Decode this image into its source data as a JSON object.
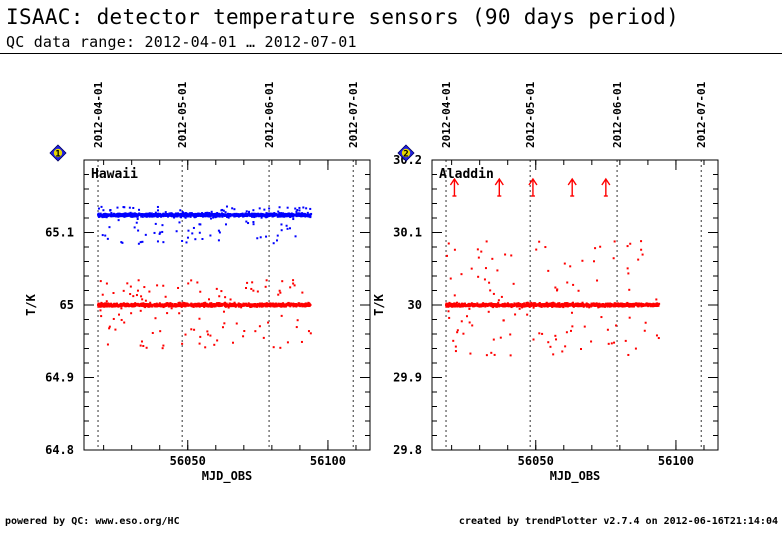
{
  "title": "ISAAC: detector temperature sensors (90 days period)",
  "subtitle": "QC data range: 2012-04-01 … 2012-07-01",
  "footer_left": "powered by QC: www.eso.org/HC",
  "footer_right": "created by trendPlotter v2.7.4 on 2012-06-16T21:14:04",
  "chart_data": [
    {
      "type": "scatter",
      "index_badge": "1",
      "panel_label": "Hawaii",
      "xlabel": "MJD_OBS",
      "ylabel": "T/K",
      "xlim": [
        56013,
        56115
      ],
      "ylim": [
        64.8,
        65.2
      ],
      "x_ticks": [
        56050,
        56100
      ],
      "y_ticks": [
        64.8,
        64.9,
        65,
        65.1
      ],
      "date_marks": [
        {
          "label": "2012-04-01",
          "mjd": 56018
        },
        {
          "label": "2012-05-01",
          "mjd": 56048
        },
        {
          "label": "2012-06-01",
          "mjd": 56079
        },
        {
          "label": "2012-07-01",
          "mjd": 56109
        }
      ],
      "series": [
        {
          "color": "#0000ff",
          "x_range": [
            56018,
            56094
          ],
          "y_center": 65.124,
          "spread": 0.004,
          "outliers_down": 0.04,
          "outliers_up": 0.012
        },
        {
          "color": "#ff0000",
          "x_range": [
            56018,
            56094
          ],
          "y_center": 65.0,
          "spread": 0.004,
          "outliers_down": 0.06,
          "outliers_up": 0.035
        }
      ],
      "out_of_range_arrows": []
    },
    {
      "type": "scatter",
      "index_badge": "2",
      "panel_label": "Aladdin",
      "xlabel": "MJD_OBS",
      "ylabel": "T/K",
      "xlim": [
        56013,
        56115
      ],
      "ylim": [
        29.8,
        30.2
      ],
      "x_ticks": [
        56050,
        56100
      ],
      "y_ticks": [
        29.8,
        29.9,
        30,
        30.1,
        30.2
      ],
      "date_marks": [
        {
          "label": "2012-04-01",
          "mjd": 56018
        },
        {
          "label": "2012-05-01",
          "mjd": 56048
        },
        {
          "label": "2012-06-01",
          "mjd": 56079
        },
        {
          "label": "2012-07-01",
          "mjd": 56109
        }
      ],
      "series": [
        {
          "color": "#ff0000",
          "x_range": [
            56018,
            56094
          ],
          "y_center": 30.0,
          "spread": 0.004,
          "outliers_down": 0.07,
          "outliers_up": 0.09
        }
      ],
      "out_of_range_arrows": [
        56021,
        56037,
        56049,
        56063,
        56075
      ]
    }
  ]
}
